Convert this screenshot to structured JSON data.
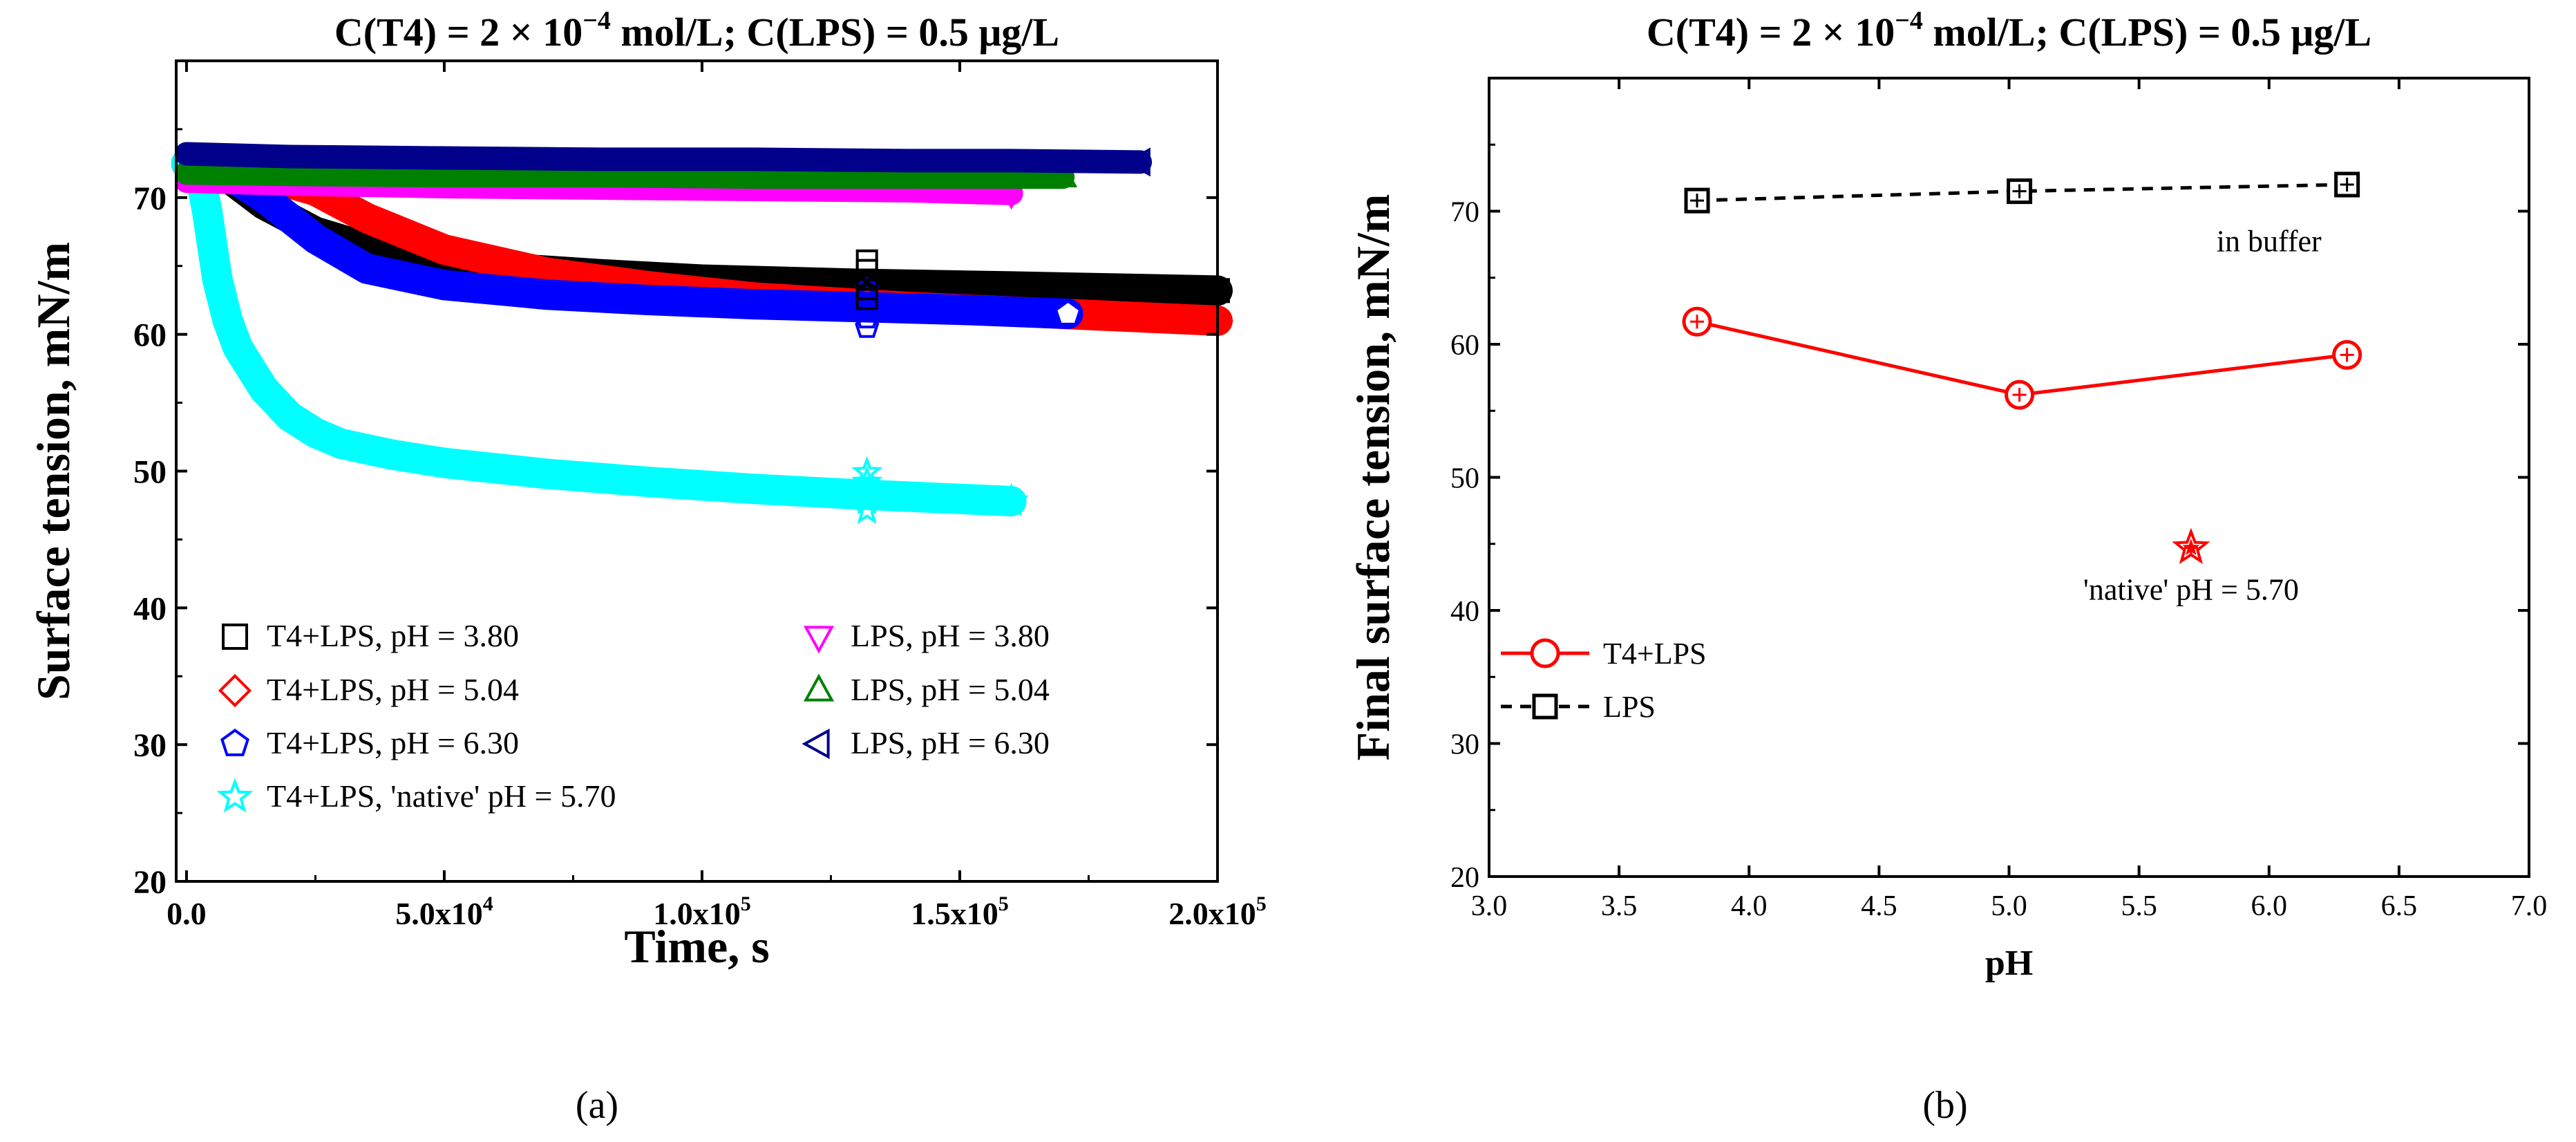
{
  "chart_data": [
    {
      "id": "a",
      "type": "scatter",
      "title_prefix": "C(T4) = 2 × 10",
      "title_exp": "−4",
      "title_suffix": " mol/L; C(LPS) = 0.5 μg/L",
      "xlabel": "Time, s",
      "ylabel": "Surface tension, mN/m",
      "xlim": [
        -2000,
        200000
      ],
      "ylim": [
        20,
        80
      ],
      "xticks": [
        {
          "v": 0,
          "mant": "0.0",
          "exp": ""
        },
        {
          "v": 50000,
          "mant": "5.0x10",
          "exp": "4"
        },
        {
          "v": 100000,
          "mant": "1.0x10",
          "exp": "5"
        },
        {
          "v": 150000,
          "mant": "1.5x10",
          "exp": "5"
        },
        {
          "v": 200000,
          "mant": "2.0x10",
          "exp": "5"
        }
      ],
      "yticks": [
        20,
        30,
        40,
        50,
        60,
        70
      ],
      "caption": "(a)",
      "series": [
        {
          "name": "T4+LPS, pH = 3.80",
          "marker": "square",
          "color": "#000000",
          "x": [
            0,
            3000,
            8000,
            15000,
            25000,
            40000,
            60000,
            80000,
            100000,
            130000,
            160000,
            200000
          ],
          "y": [
            72.5,
            72.3,
            71.5,
            69.5,
            67.5,
            65.8,
            64.9,
            64.4,
            64.0,
            63.7,
            63.5,
            63.2
          ]
        },
        {
          "name": "T4+LPS, pH = 5.04",
          "marker": "diamond",
          "color": "#ff0000",
          "x": [
            0,
            5000,
            15000,
            25000,
            35000,
            50000,
            70000,
            90000,
            110000,
            140000,
            170000,
            200000
          ],
          "y": [
            72.5,
            72.2,
            71.6,
            70.5,
            68.5,
            66.2,
            64.5,
            63.5,
            62.7,
            62.0,
            61.5,
            61.0
          ]
        },
        {
          "name": "T4+LPS, pH = 6.30",
          "marker": "pentagon",
          "color": "#0000ff",
          "x": [
            0,
            5000,
            10000,
            15000,
            20000,
            25000,
            35000,
            50000,
            70000,
            90000,
            110000,
            130000,
            150000,
            171000
          ],
          "y": [
            72.5,
            72.2,
            71.2,
            70.0,
            68.5,
            67.0,
            64.8,
            63.6,
            62.9,
            62.5,
            62.2,
            62.0,
            61.8,
            61.5
          ]
        },
        {
          "name": "T4+LPS, 'native' pH = 5.70",
          "marker": "star",
          "color": "#00ffff",
          "x": [
            0,
            1000,
            2000,
            3000,
            4000,
            5000,
            6000,
            8000,
            10000,
            15000,
            20000,
            25000,
            30000,
            40000,
            50000,
            70000,
            90000,
            110000,
            130000,
            160000
          ],
          "y": [
            72.5,
            72.4,
            72.0,
            71.0,
            69.0,
            66.5,
            64.0,
            61.0,
            59.0,
            56.0,
            54.0,
            52.8,
            52.0,
            51.2,
            50.6,
            49.8,
            49.2,
            48.7,
            48.3,
            47.8
          ]
        },
        {
          "name": "LPS, pH = 3.80",
          "marker": "triangle-down",
          "color": "#ff00ff",
          "x": [
            0,
            20000,
            50000,
            80000,
            110000,
            140000,
            160000
          ],
          "y": [
            71.2,
            71.0,
            70.8,
            70.7,
            70.6,
            70.5,
            70.3
          ]
        },
        {
          "name": "LPS, pH = 5.04",
          "marker": "triangle-up",
          "color": "#008000",
          "x": [
            0,
            20000,
            50000,
            80000,
            110000,
            140000,
            170000
          ],
          "y": [
            71.8,
            71.7,
            71.6,
            71.6,
            71.5,
            71.5,
            71.5
          ]
        },
        {
          "name": "LPS, pH = 6.30",
          "marker": "triangle-left",
          "color": "#00008b",
          "x": [
            0,
            20000,
            50000,
            80000,
            110000,
            140000,
            160000,
            185000
          ],
          "y": [
            73.2,
            73.0,
            72.9,
            72.8,
            72.8,
            72.7,
            72.7,
            72.6
          ]
        }
      ]
    },
    {
      "id": "b",
      "type": "line",
      "title_prefix": "C(T4) = 2 × 10",
      "title_exp": "−4",
      "title_suffix": " mol/L; C(LPS) = 0.5 μg/L",
      "xlabel": "pH",
      "ylabel": "Final surface tension, mN/m",
      "xlim": [
        3.0,
        7.0
      ],
      "ylim": [
        20,
        80
      ],
      "xticks": [
        "3.0",
        "3.5",
        "4.0",
        "4.5",
        "5.0",
        "5.5",
        "6.0",
        "6.5",
        "7.0"
      ],
      "yticks": [
        20,
        30,
        40,
        50,
        60,
        70
      ],
      "caption": "(b)",
      "series": [
        {
          "name": "T4+LPS",
          "marker": "circle",
          "color": "#ff0000",
          "dash": false,
          "x": [
            3.8,
            5.04,
            6.3
          ],
          "y": [
            61.7,
            56.2,
            59.2
          ]
        },
        {
          "name": "LPS",
          "marker": "square",
          "color": "#000000",
          "dash": true,
          "x": [
            3.8,
            5.04,
            6.3
          ],
          "y": [
            70.8,
            71.5,
            72.0
          ]
        },
        {
          "name": "native",
          "marker": "star",
          "color": "#ff0000",
          "dash": false,
          "x": [
            5.7
          ],
          "y": [
            44.7
          ]
        }
      ],
      "annotations": [
        {
          "text": "in buffer",
          "x": 6.0,
          "y": 67.0
        },
        {
          "text": "'native' pH = 5.70",
          "x": 5.7,
          "y": 40.8
        }
      ]
    }
  ]
}
